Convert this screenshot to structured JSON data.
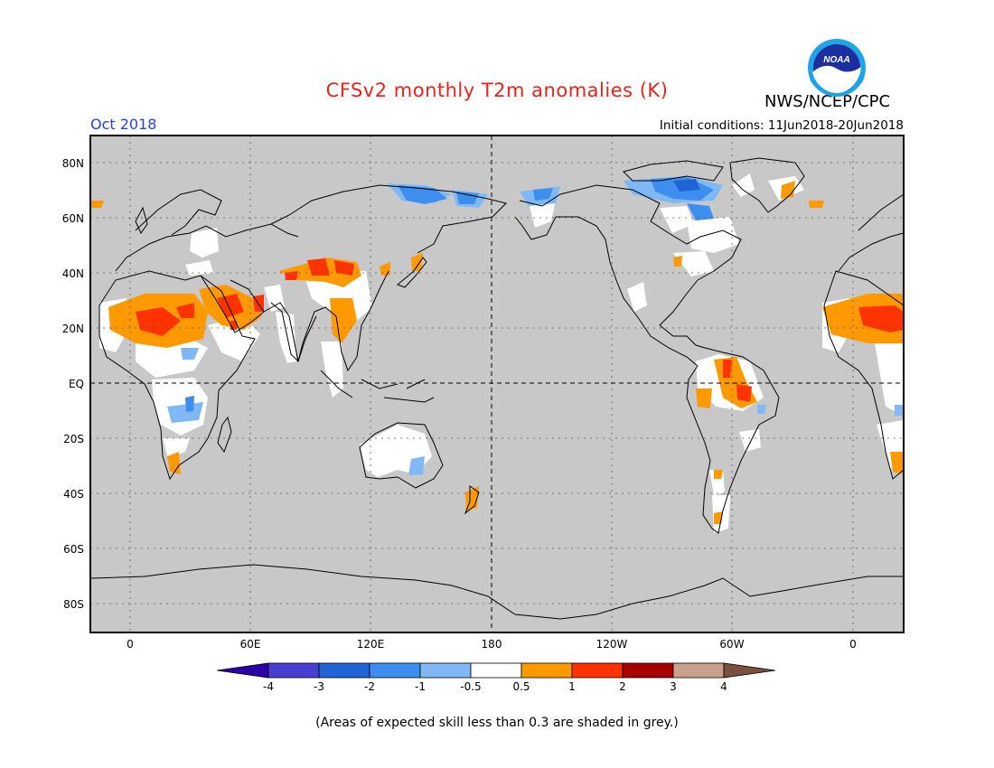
{
  "header": {
    "title": "CFSv2 monthly T2m anomalies (K)",
    "agency": "NWS/NCEP/CPC",
    "logo_text": "NOAA",
    "month": "Oct 2018",
    "initial_conditions": "Initial conditions: 11Jun2018-20Jun2018"
  },
  "map": {
    "lat_labels": [
      "80N",
      "60N",
      "40N",
      "20N",
      "EQ",
      "20S",
      "40S",
      "60S",
      "80S"
    ],
    "lon_labels": [
      "0",
      "60E",
      "120E",
      "180",
      "120W",
      "60W",
      "0"
    ],
    "background_color": "#c8c8c8"
  },
  "colorbar": {
    "labels": [
      "-4",
      "-3",
      "-2",
      "-1",
      "-0.5",
      "0.5",
      "1",
      "2",
      "3",
      "4"
    ],
    "colors": [
      "#2c00a8",
      "#4a3ed2",
      "#1e64d6",
      "#3e8ef0",
      "#7fb8f4",
      "#ffffff",
      "#ff9900",
      "#ff3300",
      "#a80000",
      "#c8a08c",
      "#7a5040"
    ]
  },
  "footnote": "(Areas of expected skill less than 0.3 are shaded in grey.)"
}
